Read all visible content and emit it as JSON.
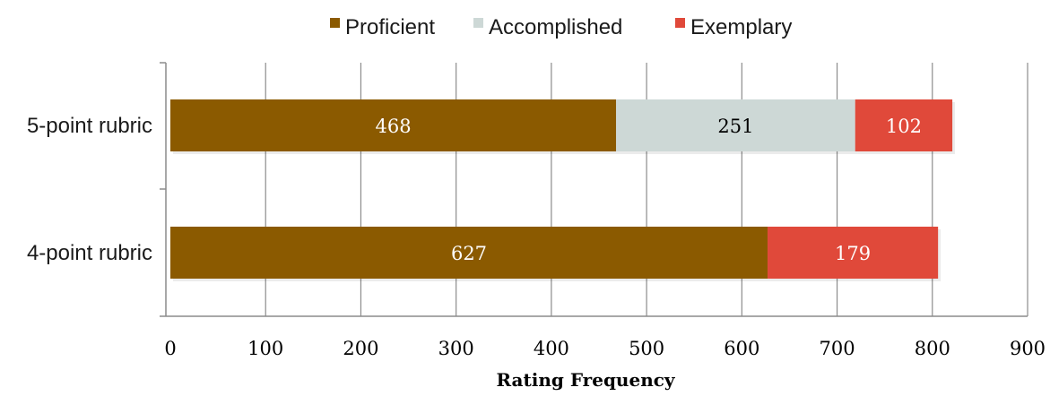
{
  "chart_data": {
    "type": "bar",
    "orientation": "horizontal",
    "stacked": true,
    "categories": [
      "5-point rubric",
      "4-point rubric"
    ],
    "series": [
      {
        "name": "Proficient",
        "color": "#8B5A00",
        "label_color": "#ffffff",
        "values": [
          468,
          627
        ]
      },
      {
        "name": "Accomplished",
        "color": "#CDD8D6",
        "label_color": "#000000",
        "values": [
          251,
          0
        ]
      },
      {
        "name": "Exemplary",
        "color": "#E0493A",
        "label_color": "#ffffff",
        "values": [
          102,
          179
        ]
      }
    ],
    "xlabel": "Rating Frequency",
    "ylabel": "",
    "xlim": [
      0,
      900
    ],
    "xticks": [
      0,
      100,
      200,
      300,
      400,
      500,
      600,
      700,
      800,
      900
    ],
    "grid": "vertical",
    "legend_position": "top"
  }
}
